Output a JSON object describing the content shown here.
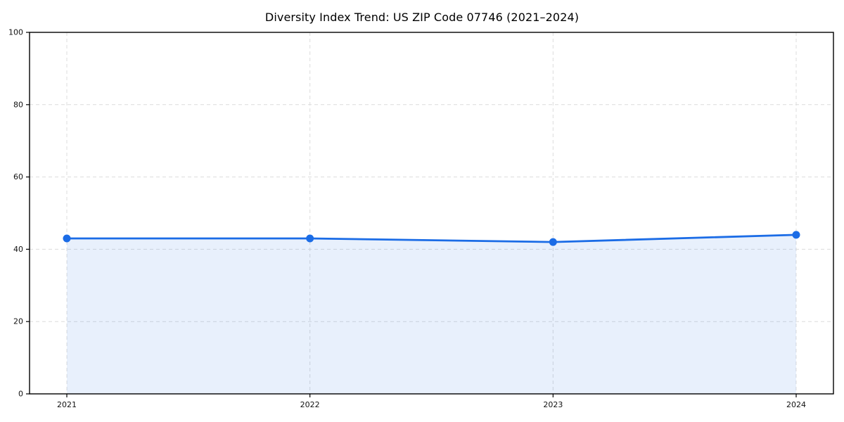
{
  "chart_data": {
    "type": "line",
    "title": "Diversity Index Trend: US ZIP Code 07746 (2021–2024)",
    "categories": [
      "2021",
      "2022",
      "2023",
      "2024"
    ],
    "series": [
      {
        "name": "Diversity Index",
        "values": [
          43,
          43,
          42,
          44
        ]
      }
    ],
    "xlabel": "",
    "ylabel": "",
    "ylim": [
      0,
      100
    ],
    "yticks": [
      0,
      20,
      40,
      60,
      80,
      100
    ],
    "grid": true,
    "grid_style": "dashed",
    "legend_position": "none",
    "marker": "circle",
    "area_fill": true,
    "colors": {
      "line": "#1b6ce6",
      "marker": "#1b6ce6",
      "area_fill": "rgba(27,108,230,0.10)",
      "grid": "#dcdcdc",
      "axis_border": "#000000",
      "tick_label": "#111111",
      "background": "#ffffff"
    }
  }
}
